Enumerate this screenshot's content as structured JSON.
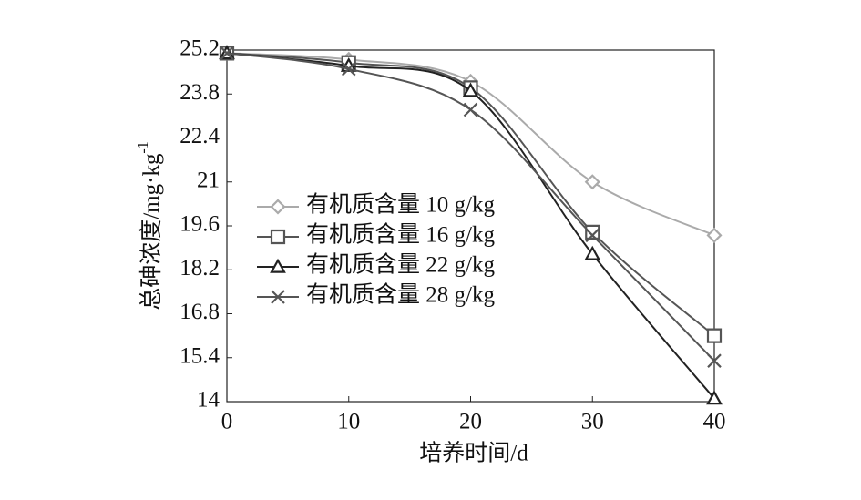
{
  "chart_data": {
    "type": "line",
    "x_label": "培养时间/d",
    "y_label": "总砷浓度/mg·kg",
    "y_label_exponent": "-1",
    "x": [
      0,
      10,
      20,
      30,
      40
    ],
    "xlim": [
      0,
      40
    ],
    "xticks": [
      0,
      10,
      20,
      30,
      40
    ],
    "ylim": [
      14,
      25.2
    ],
    "yticks": [
      25.2,
      23.8,
      22.4,
      21,
      19.6,
      18.2,
      16.8,
      15.4,
      14
    ],
    "legend": "left",
    "series": [
      {
        "name": "有机质含量 10 g/kg",
        "color": "#aaaaaa",
        "marker": "diamond",
        "values": [
          25.1,
          24.9,
          24.2,
          21.0,
          19.3
        ]
      },
      {
        "name": "有机质含量 16 g/kg",
        "color": "#555555",
        "marker": "square",
        "values": [
          25.1,
          24.8,
          24.0,
          19.4,
          16.1
        ]
      },
      {
        "name": "有机质含量 22 g/kg",
        "color": "#222222",
        "marker": "triangle",
        "values": [
          25.1,
          24.7,
          23.9,
          18.7,
          14.1
        ]
      },
      {
        "name": "有机质含量 28 g/kg",
        "color": "#555555",
        "marker": "cross",
        "values": [
          25.1,
          24.6,
          23.3,
          19.3,
          15.3
        ]
      }
    ]
  }
}
